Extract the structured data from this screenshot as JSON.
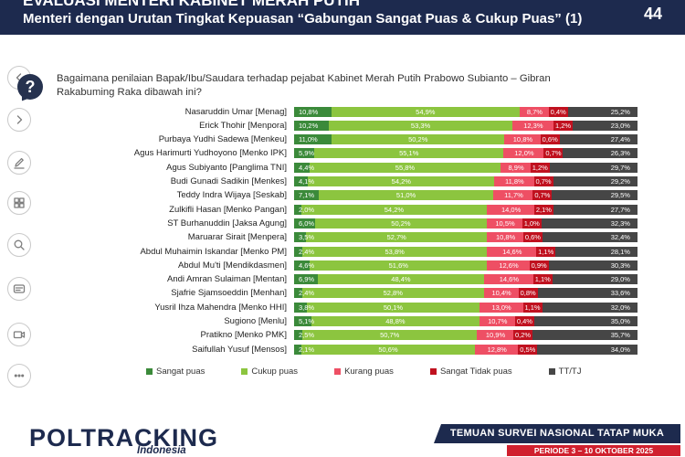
{
  "theme": {
    "navy": "#1d2a4e",
    "red": "#d0202e",
    "text": "#222222"
  },
  "header": {
    "title": "EVALUASI MENTERI KABINET MERAH PUTIH",
    "subtitle": "Menteri dengan Urutan Tingkat Kepuasan “Gabungan Sangat Puas & Cukup Puas” (1)",
    "page_number": "44"
  },
  "toolbar": {
    "icons": [
      "previous-icon",
      "next-icon",
      "pen-icon",
      "all-slides-icon",
      "zoom-icon",
      "subtitles-icon",
      "camera-icon",
      "more-options-icon"
    ]
  },
  "question_block": {
    "icon": "question-bubble-icon",
    "icon_glyph": "?",
    "text": "Bagaimana penilaian Bapak/Ibu/Saudara terhadap pejabat Kabinet Merah Putih Prabowo Subianto – Gibran Rakabuming Raka dibawah ini?"
  },
  "chart_data": {
    "type": "bar",
    "orientation": "horizontal",
    "stacked": true,
    "categories": [
      "Nasaruddin Umar [Menag]",
      "Erick Thohir [Menpora]",
      "Purbaya Yudhi Sadewa [Menkeu]",
      "Agus Harimurti Yudhoyono [Menko IPK]",
      "Agus Subiyanto [Panglima TNI]",
      "Budi Gunadi Sadikin [Menkes]",
      "Teddy Indra Wijaya [Seskab]",
      "Zulkifli Hasan [Menko Pangan]",
      "ST Burhanuddin [Jaksa Agung]",
      "Maruarar Sirait [Menpera]",
      "Abdul Muhaimin Iskandar [Menko PM]",
      "Abdul Mu'ti [Mendikdasmen]",
      "Andi Amran Sulaiman [Mentan]",
      "Sjafrie Sjamsoeddin [Menhan]",
      "Yusril Ihza Mahendra [Menko HHI]",
      "Sugiono [Menlu]",
      "Pratikno [Menko PMK]",
      "Saifullah Yusuf [Mensos]"
    ],
    "series": [
      {
        "name": "Sangat puas",
        "color": "#3b8a3a",
        "values": [
          10.8,
          10.2,
          11.0,
          5.9,
          4.4,
          4.1,
          7.1,
          2.0,
          6.0,
          3.5,
          2.4,
          4.6,
          6.9,
          2.4,
          3.8,
          5.1,
          2.5,
          2.1
        ]
      },
      {
        "name": "Cukup puas",
        "color": "#8cc53f",
        "values": [
          54.9,
          53.3,
          50.2,
          55.1,
          55.8,
          54.2,
          51.0,
          54.2,
          50.2,
          52.7,
          53.8,
          51.6,
          48.4,
          52.8,
          50.1,
          48.8,
          50.7,
          50.6
        ]
      },
      {
        "name": "Kurang puas",
        "color": "#ee4f64",
        "values": [
          8.7,
          12.3,
          10.8,
          12.0,
          8.9,
          11.8,
          11.7,
          14.0,
          10.5,
          10.8,
          14.6,
          12.6,
          14.6,
          10.4,
          13.0,
          10.7,
          10.9,
          12.8
        ]
      },
      {
        "name": "Sangat Tidak puas",
        "color": "#c0111f",
        "values": [
          0.4,
          1.2,
          0.6,
          0.7,
          1.2,
          0.7,
          0.7,
          2.1,
          1.0,
          0.6,
          1.1,
          0.9,
          1.1,
          0.8,
          1.1,
          0.4,
          0.2,
          0.5
        ]
      },
      {
        "name": "TT/TJ",
        "color": "#464646",
        "values": [
          25.2,
          23.0,
          27.4,
          26.3,
          29.7,
          29.2,
          29.5,
          27.7,
          32.3,
          32.4,
          28.1,
          30.3,
          29.0,
          33.6,
          32.0,
          35.0,
          35.7,
          34.0
        ]
      }
    ],
    "xlim": [
      0,
      100
    ],
    "grid": false,
    "legend": "bottom",
    "label_format": {
      "decimal": ",",
      "suffix": "%"
    }
  },
  "footer": {
    "logo_text": "POLTRACKING",
    "logo_subtext": "Indonesia",
    "survey_label": "TEMUAN SURVEI NASIONAL TATAP MUKA",
    "period": "PERIODE 3 – 10 OKTOBER 2025"
  }
}
